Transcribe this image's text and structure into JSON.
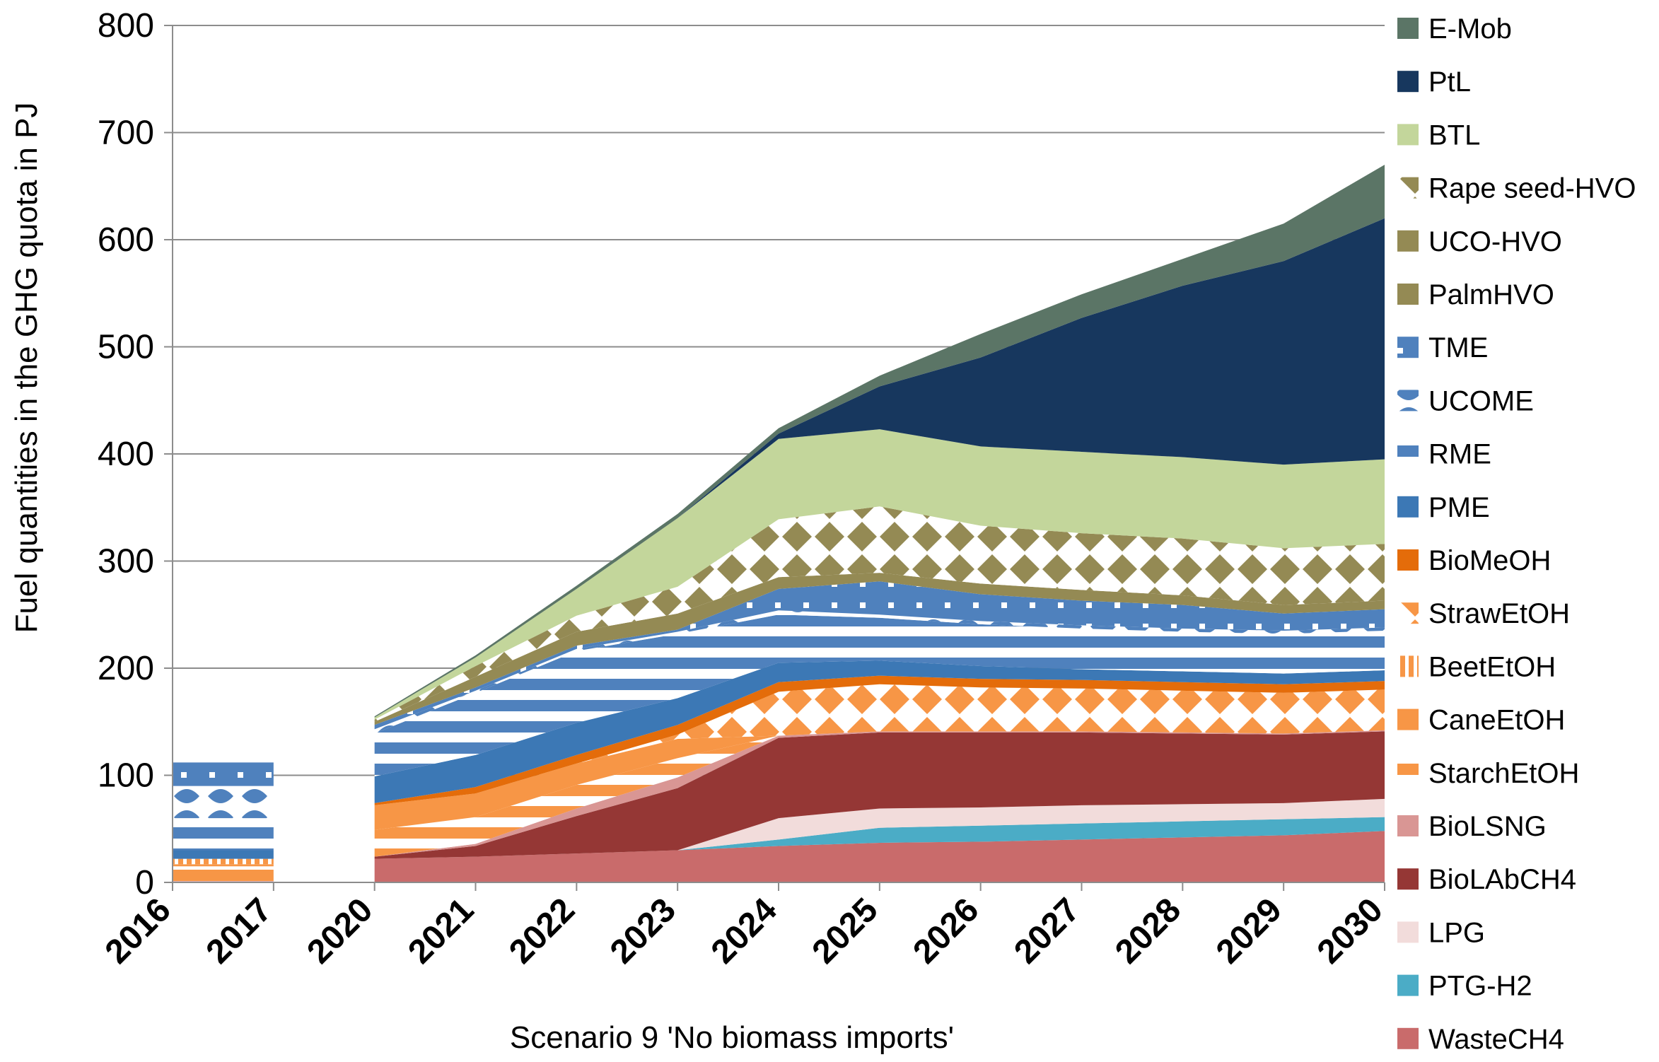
{
  "chart_data": {
    "type": "area",
    "stacked": true,
    "xlabel": "Scenario 9 'No biomass imports'",
    "ylabel": "Fuel quantities in the GHG quota in PJ",
    "ylim": [
      0,
      800
    ],
    "yticks": [
      0,
      100,
      200,
      300,
      400,
      500,
      600,
      700,
      800
    ],
    "categories": [
      "2016",
      "2017",
      "2020",
      "2021",
      "2022",
      "2023",
      "2024",
      "2025",
      "2026",
      "2027",
      "2028",
      "2029",
      "2030"
    ],
    "gap_after_index": 1,
    "legend_position": "right",
    "series": [
      {
        "name": "WasteCH4",
        "color": "#c96b6b",
        "pattern": "solid",
        "values": [
          1,
          1,
          22,
          24,
          27,
          30,
          34,
          37,
          38,
          40,
          42,
          44,
          48
        ]
      },
      {
        "name": "PTG-H2",
        "color": "#4bacc6",
        "pattern": "solid",
        "values": [
          0,
          0,
          0,
          0,
          0,
          0,
          6,
          14,
          15,
          15,
          15,
          15,
          13
        ]
      },
      {
        "name": "LPG",
        "color": "#f2dcdb",
        "pattern": "solid",
        "values": [
          0,
          0,
          0,
          0,
          0,
          0,
          20,
          18,
          17,
          17,
          16,
          15,
          17
        ]
      },
      {
        "name": "BioLAbCH4",
        "color": "#953735",
        "pattern": "solid",
        "values": [
          0,
          0,
          2,
          10,
          35,
          58,
          75,
          71,
          70,
          68,
          66,
          64,
          63
        ]
      },
      {
        "name": "BioLSNG",
        "color": "#d99694",
        "pattern": "solid",
        "values": [
          0,
          0,
          0,
          2,
          7,
          10,
          2,
          1,
          1,
          1,
          1,
          1,
          1
        ]
      },
      {
        "name": "StarchEtOH",
        "color": "#f79646",
        "pattern": "hstripe",
        "values": [
          14,
          14,
          25,
          25,
          22,
          18,
          0,
          0,
          0,
          0,
          0,
          0,
          0
        ]
      },
      {
        "name": "CaneEtOH",
        "color": "#f79646",
        "pattern": "solid",
        "values": [
          2,
          2,
          23,
          22,
          20,
          18,
          0,
          0,
          0,
          0,
          0,
          0,
          0
        ]
      },
      {
        "name": "BeetEtOH",
        "color": "#f79646",
        "pattern": "vstripe",
        "values": [
          5,
          5,
          0,
          0,
          0,
          0,
          0,
          0,
          0,
          0,
          0,
          0,
          0
        ]
      },
      {
        "name": "StrawEtOH",
        "color": "#f79646",
        "pattern": "diamond",
        "values": [
          0,
          0,
          0,
          0,
          0,
          4,
          41,
          44,
          41,
          40,
          39,
          38,
          38
        ]
      },
      {
        "name": "BioMeOH",
        "color": "#e46c0a",
        "pattern": "solid",
        "values": [
          0,
          0,
          2,
          6,
          8,
          9,
          9,
          8,
          8,
          8,
          8,
          8,
          8
        ]
      },
      {
        "name": "PME",
        "color": "#3c78b5",
        "pattern": "solid",
        "values": [
          8,
          8,
          25,
          30,
          30,
          25,
          18,
          14,
          12,
          10,
          10,
          10,
          10
        ]
      },
      {
        "name": "RME",
        "color": "#4f81bd",
        "pattern": "hstripe",
        "values": [
          30,
          30,
          40,
          58,
          67,
          60,
          45,
          40,
          39,
          38,
          37,
          37,
          37
        ]
      },
      {
        "name": "UCOME",
        "color": "#4f81bd",
        "pattern": "scallop",
        "values": [
          30,
          30,
          4,
          2,
          2,
          2,
          4,
          3,
          3,
          3,
          3,
          3,
          3
        ]
      },
      {
        "name": "TME",
        "color": "#4f81bd",
        "pattern": "dots",
        "values": [
          22,
          22,
          4,
          3,
          3,
          2,
          20,
          31,
          25,
          23,
          22,
          16,
          17
        ]
      },
      {
        "name": "PalmHVO",
        "color": "#948a54",
        "pattern": "solid",
        "values": [
          0,
          0,
          0,
          0,
          0,
          0,
          0,
          0,
          0,
          0,
          0,
          0,
          0
        ]
      },
      {
        "name": "UCO-HVO",
        "color": "#948a54",
        "pattern": "solid",
        "values": [
          0,
          0,
          3,
          10,
          13,
          15,
          11,
          8,
          10,
          10,
          9,
          8,
          8
        ]
      },
      {
        "name": "Rape seed-HVO",
        "color": "#948a54",
        "pattern": "diamond",
        "values": [
          0,
          0,
          2,
          10,
          15,
          25,
          54,
          62,
          54,
          53,
          53,
          53,
          53
        ]
      },
      {
        "name": "BTL",
        "color": "#c3d69b",
        "pattern": "solid",
        "values": [
          0,
          0,
          2,
          8,
          25,
          64,
          75,
          72,
          74,
          76,
          76,
          78,
          79
        ]
      },
      {
        "name": "PtL",
        "color": "#17375e",
        "pattern": "solid",
        "values": [
          0,
          0,
          0,
          0,
          0,
          0,
          5,
          40,
          83,
          125,
          160,
          190,
          225
        ]
      },
      {
        "name": "E-Mob",
        "color": "#5b7566",
        "pattern": "solid",
        "values": [
          0,
          0,
          1,
          2,
          3,
          4,
          5,
          10,
          22,
          22,
          25,
          35,
          50
        ]
      }
    ]
  }
}
